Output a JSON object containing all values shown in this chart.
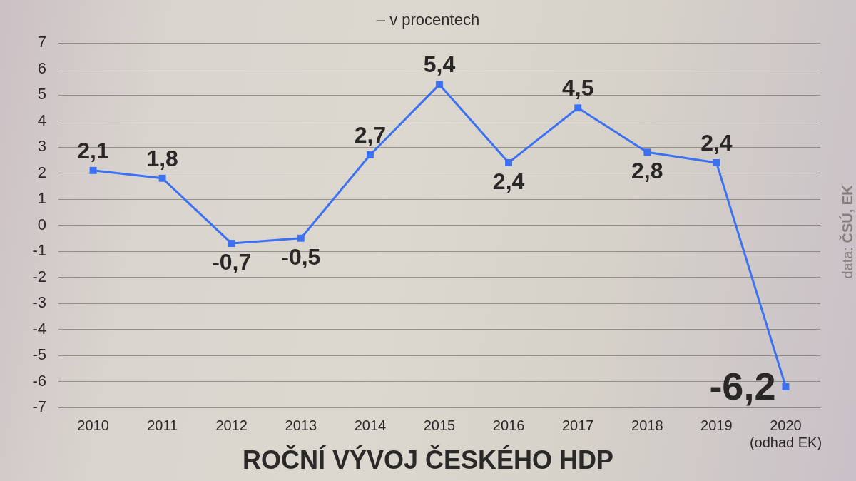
{
  "chart_data": {
    "type": "line",
    "subtitle": "– v procentech",
    "title": "ROČNÍ VÝVOJ ČESKÉHO HDP",
    "categories": [
      "2010",
      "2011",
      "2012",
      "2013",
      "2014",
      "2015",
      "2016",
      "2017",
      "2018",
      "2019",
      "2020\n(odhad EK)"
    ],
    "values": [
      2.1,
      1.8,
      -0.7,
      -0.5,
      2.7,
      5.4,
      2.4,
      4.5,
      2.8,
      2.4,
      -6.2
    ],
    "value_labels": [
      "2,1",
      "1,8",
      "-0,7",
      "-0,5",
      "2,7",
      "5,4",
      "2,4",
      "4,5",
      "2,8",
      "2,4",
      "-6,2"
    ],
    "color": "#3d71f4",
    "ylim": [
      -7,
      7
    ],
    "yticks": [
      -7,
      -6,
      -5,
      -4,
      -3,
      -2,
      -1,
      0,
      1,
      2,
      3,
      4,
      5,
      6,
      7
    ],
    "grid": "y",
    "marker": "square",
    "line_style": "solid",
    "annotations": [
      "data: ČSÚ, EK"
    ]
  }
}
